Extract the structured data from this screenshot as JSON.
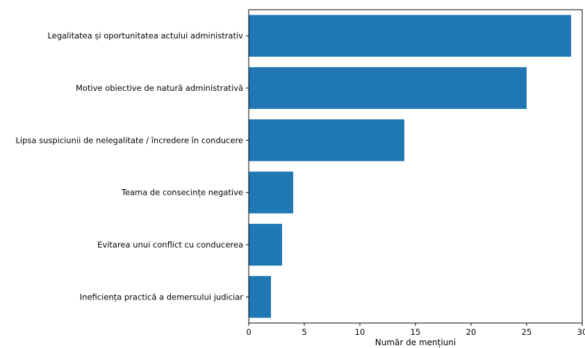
{
  "chart_data": {
    "type": "bar",
    "orientation": "horizontal",
    "categories": [
      "Legalitatea și oportunitatea actului administrativ",
      "Motive obiective de natură administrativă",
      "Lipsa suspiciunii de nelegalitate / încredere în conducere",
      "Teama de consecințe negative",
      "Evitarea unui conflict cu conducerea",
      "Ineficiența practică a demersului judiciar"
    ],
    "values": [
      29,
      25,
      14,
      4,
      3,
      2
    ],
    "title": "",
    "xlabel": "Număr de mențiuni",
    "ylabel": "",
    "xlim": [
      0,
      30
    ],
    "xticks": [
      0,
      5,
      10,
      15,
      20,
      25,
      30
    ],
    "grid": false,
    "colors": {
      "bar": "#1f77b4"
    }
  }
}
